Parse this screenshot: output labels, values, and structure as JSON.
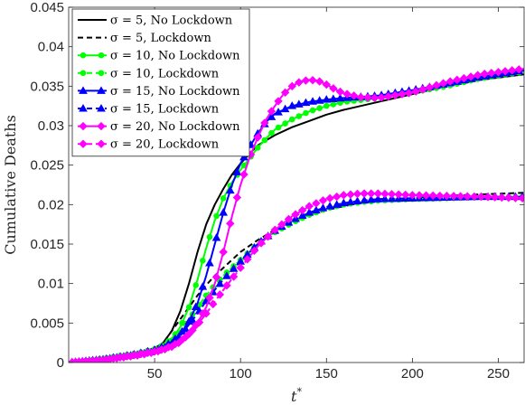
{
  "chart_data": {
    "type": "line",
    "xlabel": "t*",
    "ylabel": "Cumulative Deaths",
    "xlim": [
      0,
      265
    ],
    "ylim": [
      0,
      0.045
    ],
    "xticks": [
      50,
      100,
      150,
      200,
      250
    ],
    "yticks": [
      0,
      0.005,
      0.01,
      0.015,
      0.02,
      0.025,
      0.03,
      0.035,
      0.04,
      0.045
    ],
    "ytick_labels": [
      "0",
      "0.005",
      "0.01",
      "0.015",
      "0.02",
      "0.025",
      "0.03",
      "0.035",
      "0.04",
      "0.045"
    ],
    "legend_position": "top-left",
    "series": [
      {
        "name": "σ = 5, No Lockdown",
        "color": "#000000",
        "dash": "solid",
        "marker": "none",
        "x": [
          0,
          20,
          40,
          50,
          55,
          60,
          65,
          70,
          75,
          80,
          85,
          90,
          95,
          100,
          105,
          110,
          120,
          130,
          140,
          150,
          160,
          180,
          200,
          220,
          240,
          265
        ],
        "y": [
          0,
          0.0005,
          0.0012,
          0.0018,
          0.0025,
          0.004,
          0.0065,
          0.01,
          0.014,
          0.0175,
          0.02,
          0.022,
          0.0238,
          0.0252,
          0.0264,
          0.0275,
          0.0288,
          0.0298,
          0.0306,
          0.0314,
          0.032,
          0.033,
          0.034,
          0.035,
          0.0358,
          0.0365
        ]
      },
      {
        "name": "σ = 5, Lockdown",
        "color": "#000000",
        "dash": "dashed",
        "marker": "none",
        "x": [
          0,
          20,
          40,
          50,
          55,
          60,
          65,
          70,
          75,
          80,
          85,
          90,
          100,
          110,
          120,
          130,
          140,
          150,
          160,
          170,
          180,
          200,
          220,
          240,
          265
        ],
        "y": [
          0,
          0.0005,
          0.0012,
          0.0018,
          0.0025,
          0.004,
          0.0055,
          0.007,
          0.0085,
          0.0098,
          0.011,
          0.012,
          0.014,
          0.0155,
          0.0168,
          0.0178,
          0.0187,
          0.0193,
          0.0198,
          0.0202,
          0.0205,
          0.0208,
          0.0211,
          0.0213,
          0.0215
        ]
      },
      {
        "name": "σ = 10, No Lockdown",
        "color": "#00ff00",
        "dash": "solid",
        "marker": "circle",
        "x": [
          0,
          20,
          40,
          50,
          55,
          60,
          65,
          70,
          75,
          80,
          85,
          90,
          95,
          100,
          105,
          110,
          115,
          120,
          130,
          140,
          150,
          160,
          180,
          200,
          220,
          240,
          265
        ],
        "y": [
          0,
          0.0005,
          0.0012,
          0.0017,
          0.0022,
          0.003,
          0.0045,
          0.007,
          0.0105,
          0.0145,
          0.018,
          0.0208,
          0.0228,
          0.0244,
          0.0258,
          0.0272,
          0.0284,
          0.0295,
          0.0308,
          0.0318,
          0.0325,
          0.033,
          0.0335,
          0.0342,
          0.035,
          0.036,
          0.0368
        ]
      },
      {
        "name": "σ = 10, Lockdown",
        "color": "#00ff00",
        "dash": "dashed",
        "marker": "circle",
        "x": [
          0,
          20,
          40,
          50,
          55,
          60,
          65,
          70,
          75,
          80,
          85,
          90,
          100,
          110,
          120,
          130,
          140,
          150,
          160,
          170,
          180,
          200,
          220,
          240,
          265
        ],
        "y": [
          0,
          0.0004,
          0.001,
          0.0015,
          0.002,
          0.0028,
          0.004,
          0.0055,
          0.007,
          0.0085,
          0.0098,
          0.011,
          0.013,
          0.015,
          0.0165,
          0.0177,
          0.0187,
          0.0195,
          0.02,
          0.0203,
          0.0205,
          0.0207,
          0.0208,
          0.0209,
          0.021
        ]
      },
      {
        "name": "σ = 15, No Lockdown",
        "color": "#0000ff",
        "dash": "solid",
        "marker": "triangle",
        "x": [
          0,
          20,
          40,
          50,
          55,
          60,
          65,
          70,
          75,
          80,
          85,
          90,
          95,
          100,
          105,
          110,
          115,
          120,
          130,
          140,
          150,
          160,
          180,
          200,
          220,
          240,
          265
        ],
        "y": [
          0,
          0.0004,
          0.0011,
          0.0016,
          0.002,
          0.0026,
          0.0036,
          0.0052,
          0.0075,
          0.011,
          0.015,
          0.019,
          0.0225,
          0.0252,
          0.0272,
          0.029,
          0.0305,
          0.0315,
          0.0325,
          0.033,
          0.0333,
          0.0335,
          0.0338,
          0.0345,
          0.0353,
          0.0362,
          0.037
        ]
      },
      {
        "name": "σ = 15, Lockdown",
        "color": "#0000ff",
        "dash": "dashed",
        "marker": "triangle",
        "x": [
          0,
          20,
          40,
          50,
          55,
          60,
          65,
          70,
          75,
          80,
          85,
          90,
          100,
          110,
          120,
          130,
          140,
          150,
          160,
          170,
          180,
          200,
          220,
          240,
          265
        ],
        "y": [
          0,
          0.0004,
          0.001,
          0.0014,
          0.0018,
          0.0024,
          0.0034,
          0.0048,
          0.0062,
          0.0078,
          0.0092,
          0.0105,
          0.0128,
          0.015,
          0.0167,
          0.018,
          0.019,
          0.0197,
          0.0202,
          0.0205,
          0.0207,
          0.0208,
          0.0209,
          0.021,
          0.021
        ]
      },
      {
        "name": "σ = 20, No Lockdown",
        "color": "#ff00ff",
        "dash": "solid",
        "marker": "diamond",
        "x": [
          0,
          20,
          40,
          50,
          55,
          60,
          65,
          70,
          75,
          80,
          85,
          90,
          95,
          100,
          105,
          110,
          115,
          120,
          125,
          130,
          135,
          140,
          145,
          150,
          155,
          160,
          170,
          180,
          200,
          220,
          240,
          265
        ],
        "y": [
          0,
          0.0003,
          0.001,
          0.0014,
          0.0017,
          0.0021,
          0.0027,
          0.0036,
          0.005,
          0.007,
          0.01,
          0.014,
          0.0185,
          0.0225,
          0.0258,
          0.0285,
          0.0308,
          0.0325,
          0.034,
          0.035,
          0.0356,
          0.0358,
          0.0357,
          0.0352,
          0.0346,
          0.0341,
          0.0336,
          0.0335,
          0.0342,
          0.0355,
          0.0365,
          0.0372
        ]
      },
      {
        "name": "σ = 20, Lockdown",
        "color": "#ff00ff",
        "dash": "dashed",
        "marker": "diamond",
        "x": [
          0,
          20,
          40,
          50,
          55,
          60,
          65,
          70,
          75,
          80,
          85,
          90,
          100,
          110,
          120,
          130,
          140,
          150,
          160,
          170,
          180,
          190,
          200,
          220,
          240,
          265
        ],
        "y": [
          0,
          0.0003,
          0.0009,
          0.0013,
          0.0016,
          0.002,
          0.0026,
          0.0036,
          0.0048,
          0.0062,
          0.0077,
          0.0092,
          0.012,
          0.0147,
          0.0168,
          0.0185,
          0.0198,
          0.0207,
          0.0212,
          0.0214,
          0.0214,
          0.0213,
          0.0212,
          0.0211,
          0.021,
          0.0208
        ]
      }
    ]
  }
}
